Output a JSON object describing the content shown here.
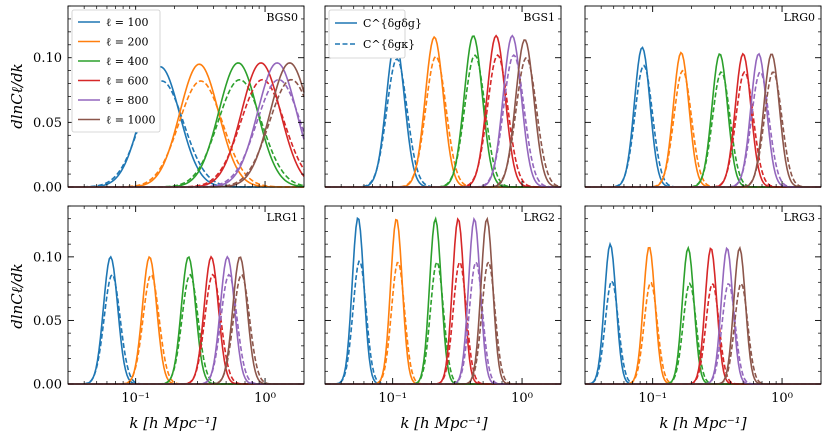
{
  "figure": {
    "ylabel": "dlnCℓ/dk",
    "xlabel": "k [h Mpc⁻¹]"
  },
  "colors": {
    "ell_100": "#1f77b4",
    "ell_200": "#ff7f0e",
    "ell_400": "#2ca02c",
    "ell_600": "#d62728",
    "ell_800": "#9467bd",
    "ell_1000": "#8c564b"
  },
  "legend_ell": [
    "ℓ = 100",
    "ℓ = 200",
    "ℓ = 400",
    "ℓ = 600",
    "ℓ = 800",
    "ℓ = 1000"
  ],
  "legend_style": [
    {
      "label": "C^{δgδg}",
      "linestyle": "solid"
    },
    {
      "label": "C^{δgκ}",
      "linestyle": "dashed"
    }
  ],
  "chart_data": [
    {
      "type": "line",
      "panel": "BGS0",
      "xscale": "log",
      "xlim": [
        0.03,
        2.0
      ],
      "ylim": [
        0,
        0.14
      ],
      "yticks": [
        "0.00",
        "0.05",
        "0.10"
      ],
      "xticks": [
        "10⁻¹",
        "10⁰"
      ],
      "series": [
        {
          "name": "ℓ = 100",
          "peak_k": 0.155,
          "peak_solid": 0.093,
          "peak_dashed": 0.082,
          "width": 0.15
        },
        {
          "name": "ℓ = 200",
          "peak_k": 0.31,
          "peak_solid": 0.095,
          "peak_dashed": 0.082,
          "width": 0.15
        },
        {
          "name": "ℓ = 400",
          "peak_k": 0.62,
          "peak_solid": 0.096,
          "peak_dashed": 0.083,
          "width": 0.15
        },
        {
          "name": "ℓ = 600",
          "peak_k": 0.93,
          "peak_solid": 0.096,
          "peak_dashed": 0.083,
          "width": 0.15
        },
        {
          "name": "ℓ = 800",
          "peak_k": 1.24,
          "peak_solid": 0.096,
          "peak_dashed": 0.083,
          "width": 0.15
        },
        {
          "name": "ℓ = 1000",
          "peak_k": 1.55,
          "peak_solid": 0.096,
          "peak_dashed": 0.083,
          "width": 0.15
        }
      ]
    },
    {
      "type": "line",
      "panel": "BGS1",
      "xscale": "log",
      "xlim": [
        0.03,
        2.0
      ],
      "ylim": [
        0,
        0.14
      ],
      "yticks": [
        "0.00",
        "0.05",
        "0.10"
      ],
      "xticks": [
        "10⁻¹",
        "10⁰"
      ],
      "series": [
        {
          "name": "ℓ = 100",
          "peak_k": 0.105,
          "peak_solid": 0.113,
          "peak_dashed": 0.099,
          "width": 0.07
        },
        {
          "name": "ℓ = 200",
          "peak_k": 0.21,
          "peak_solid": 0.116,
          "peak_dashed": 0.101,
          "width": 0.07
        },
        {
          "name": "ℓ = 400",
          "peak_k": 0.42,
          "peak_solid": 0.117,
          "peak_dashed": 0.102,
          "width": 0.07
        },
        {
          "name": "ℓ = 600",
          "peak_k": 0.63,
          "peak_solid": 0.117,
          "peak_dashed": 0.102,
          "width": 0.07
        },
        {
          "name": "ℓ = 800",
          "peak_k": 0.84,
          "peak_solid": 0.117,
          "peak_dashed": 0.102,
          "width": 0.07
        },
        {
          "name": "ℓ = 1000",
          "peak_k": 1.05,
          "peak_solid": 0.114,
          "peak_dashed": 0.1,
          "width": 0.07
        }
      ]
    },
    {
      "type": "line",
      "panel": "LRG0",
      "xscale": "log",
      "xlim": [
        0.03,
        2.0
      ],
      "ylim": [
        0,
        0.14
      ],
      "yticks": [
        "0.00",
        "0.05",
        "0.10"
      ],
      "xticks": [
        "10⁻¹",
        "10⁰"
      ],
      "series": [
        {
          "name": "ℓ = 100",
          "peak_k": 0.083,
          "peak_solid": 0.108,
          "peak_dashed": 0.094,
          "width": 0.06
        },
        {
          "name": "ℓ = 200",
          "peak_k": 0.166,
          "peak_solid": 0.104,
          "peak_dashed": 0.09,
          "width": 0.06
        },
        {
          "name": "ℓ = 400",
          "peak_k": 0.33,
          "peak_solid": 0.103,
          "peak_dashed": 0.089,
          "width": 0.06
        },
        {
          "name": "ℓ = 600",
          "peak_k": 0.5,
          "peak_solid": 0.103,
          "peak_dashed": 0.089,
          "width": 0.06
        },
        {
          "name": "ℓ = 800",
          "peak_k": 0.66,
          "peak_solid": 0.103,
          "peak_dashed": 0.089,
          "width": 0.06
        },
        {
          "name": "ℓ = 1000",
          "peak_k": 0.83,
          "peak_solid": 0.103,
          "peak_dashed": 0.089,
          "width": 0.06
        }
      ]
    },
    {
      "type": "line",
      "panel": "LRG1",
      "xscale": "log",
      "xlim": [
        0.03,
        2.0
      ],
      "ylim": [
        0,
        0.14
      ],
      "yticks": [
        "0.00",
        "0.05",
        "0.10"
      ],
      "xticks": [
        "10⁻¹",
        "10⁰"
      ],
      "series": [
        {
          "name": "ℓ = 100",
          "peak_k": 0.064,
          "peak_solid": 0.1,
          "peak_dashed": 0.086,
          "width": 0.055
        },
        {
          "name": "ℓ = 200",
          "peak_k": 0.128,
          "peak_solid": 0.1,
          "peak_dashed": 0.086,
          "width": 0.055
        },
        {
          "name": "ℓ = 400",
          "peak_k": 0.256,
          "peak_solid": 0.1,
          "peak_dashed": 0.086,
          "width": 0.055
        },
        {
          "name": "ℓ = 600",
          "peak_k": 0.384,
          "peak_solid": 0.1,
          "peak_dashed": 0.086,
          "width": 0.055
        },
        {
          "name": "ℓ = 800",
          "peak_k": 0.512,
          "peak_solid": 0.1,
          "peak_dashed": 0.086,
          "width": 0.055
        },
        {
          "name": "ℓ = 1000",
          "peak_k": 0.64,
          "peak_solid": 0.1,
          "peak_dashed": 0.086,
          "width": 0.055
        }
      ]
    },
    {
      "type": "line",
      "panel": "LRG2",
      "xscale": "log",
      "xlim": [
        0.03,
        2.0
      ],
      "ylim": [
        0,
        0.14
      ],
      "yticks": [
        "0.00",
        "0.05",
        "0.10"
      ],
      "xticks": [
        "10⁻¹",
        "10⁰"
      ],
      "series": [
        {
          "name": "ℓ = 100",
          "peak_k": 0.054,
          "peak_solid": 0.131,
          "peak_dashed": 0.097,
          "width": 0.045
        },
        {
          "name": "ℓ = 200",
          "peak_k": 0.107,
          "peak_solid": 0.13,
          "peak_dashed": 0.096,
          "width": 0.045
        },
        {
          "name": "ℓ = 400",
          "peak_k": 0.214,
          "peak_solid": 0.13,
          "peak_dashed": 0.096,
          "width": 0.045
        },
        {
          "name": "ℓ = 600",
          "peak_k": 0.321,
          "peak_solid": 0.13,
          "peak_dashed": 0.096,
          "width": 0.045
        },
        {
          "name": "ℓ = 800",
          "peak_k": 0.428,
          "peak_solid": 0.13,
          "peak_dashed": 0.096,
          "width": 0.045
        },
        {
          "name": "ℓ = 1000",
          "peak_k": 0.535,
          "peak_solid": 0.13,
          "peak_dashed": 0.096,
          "width": 0.045
        }
      ]
    },
    {
      "type": "line",
      "panel": "LRG3",
      "xscale": "log",
      "xlim": [
        0.03,
        2.0
      ],
      "ylim": [
        0,
        0.14
      ],
      "yticks": [
        "0.00",
        "0.05",
        "0.10"
      ],
      "xticks": [
        "10⁻¹",
        "10⁰"
      ],
      "series": [
        {
          "name": "ℓ = 100",
          "peak_k": 0.047,
          "peak_solid": 0.11,
          "peak_dashed": 0.081,
          "width": 0.045
        },
        {
          "name": "ℓ = 200",
          "peak_k": 0.094,
          "peak_solid": 0.108,
          "peak_dashed": 0.08,
          "width": 0.045
        },
        {
          "name": "ℓ = 400",
          "peak_k": 0.188,
          "peak_solid": 0.107,
          "peak_dashed": 0.079,
          "width": 0.045
        },
        {
          "name": "ℓ = 600",
          "peak_k": 0.282,
          "peak_solid": 0.107,
          "peak_dashed": 0.079,
          "width": 0.045
        },
        {
          "name": "ℓ = 800",
          "peak_k": 0.376,
          "peak_solid": 0.107,
          "peak_dashed": 0.079,
          "width": 0.045
        },
        {
          "name": "ℓ = 1000",
          "peak_k": 0.47,
          "peak_solid": 0.107,
          "peak_dashed": 0.079,
          "width": 0.045
        }
      ]
    }
  ]
}
